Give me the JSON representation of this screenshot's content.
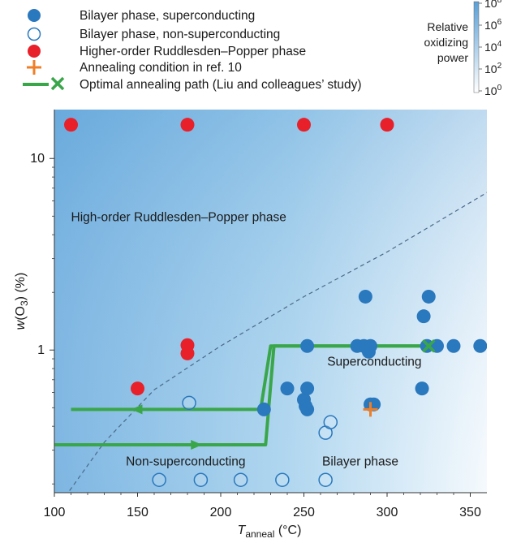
{
  "chart_data": {
    "type": "scatter",
    "xlabel": {
      "main": "T",
      "sub": "anneal",
      "unit": " (°C)"
    },
    "ylabel": {
      "main": "w",
      "mid": "(O",
      "sub": "3",
      "unit": ") (%)"
    },
    "xlim": [
      100,
      360
    ],
    "ylim": [
      0.18,
      18
    ],
    "y_scale": "log",
    "x_ticks": [
      "100",
      "150",
      "200",
      "250",
      "300",
      "350"
    ],
    "y_ticks": [
      "1",
      "10"
    ],
    "legend": [
      {
        "marker": "filled-blue",
        "label": "Bilayer phase, superconducting"
      },
      {
        "marker": "open-blue",
        "label": "Bilayer phase, non-superconducting"
      },
      {
        "marker": "filled-red",
        "label": "Higher-order Ruddlesden–Popper phase"
      },
      {
        "marker": "orange-plus",
        "label": "Annealing condition in ref. 10"
      },
      {
        "marker": "green-path",
        "label": "Optimal annealing path (Liu and colleagues’ study)"
      }
    ],
    "colorbar": {
      "title_lines": [
        "Relative",
        "oxidizing",
        "power"
      ],
      "tick_base": "10",
      "tick_exponents": [
        "0",
        "2",
        "4",
        "6",
        "8"
      ]
    },
    "region_labels": [
      {
        "text": "High-order Ruddlesden–Popper phase",
        "x": 110,
        "y": 4.7
      },
      {
        "text": "Superconducting",
        "x": 264,
        "y": 0.83
      },
      {
        "text": "Non-superconducting",
        "x": 143,
        "y": 0.25
      },
      {
        "text": "Bilayer phase",
        "x": 261,
        "y": 0.25
      }
    ],
    "series": [
      {
        "name": "Bilayer phase, superconducting",
        "marker": "filled-blue",
        "points": [
          [
            226,
            0.49
          ],
          [
            240,
            0.63
          ],
          [
            250,
            0.55
          ],
          [
            251,
            0.51
          ],
          [
            252,
            0.49
          ],
          [
            252,
            0.63
          ],
          [
            252,
            1.05
          ],
          [
            282,
            1.05
          ],
          [
            286,
            1.05
          ],
          [
            287,
            1.9
          ],
          [
            289,
            0.98
          ],
          [
            290,
            1.05
          ],
          [
            290,
            0.52
          ],
          [
            292,
            0.52
          ],
          [
            321,
            0.63
          ],
          [
            322,
            1.5
          ],
          [
            324,
            1.05
          ],
          [
            325,
            1.9
          ],
          [
            330,
            1.05
          ],
          [
            340,
            1.05
          ],
          [
            356,
            1.05
          ]
        ]
      },
      {
        "name": "Bilayer phase, non-superconducting",
        "marker": "open-blue",
        "points": [
          [
            163,
            0.21
          ],
          [
            181,
            0.53
          ],
          [
            188,
            0.21
          ],
          [
            212,
            0.21
          ],
          [
            237,
            0.21
          ],
          [
            263,
            0.21
          ],
          [
            263,
            0.37
          ],
          [
            266,
            0.42
          ]
        ]
      },
      {
        "name": "Higher-order Ruddlesden–Popper phase",
        "marker": "filled-red",
        "points": [
          [
            110,
            15
          ],
          [
            180,
            15
          ],
          [
            250,
            15
          ],
          [
            300,
            15
          ],
          [
            150,
            0.63
          ],
          [
            180,
            1.06
          ],
          [
            180,
            0.96
          ]
        ]
      },
      {
        "name": "Annealing condition in ref. 10",
        "marker": "orange-plus",
        "points": [
          [
            290,
            0.49
          ]
        ]
      }
    ],
    "optimal_path": {
      "upper": [
        [
          325,
          1.05
        ],
        [
          230,
          1.05
        ],
        [
          224,
          0.49
        ],
        [
          110,
          0.49
        ]
      ],
      "lower": [
        [
          100,
          0.32
        ],
        [
          227,
          0.32
        ],
        [
          232,
          1.05
        ],
        [
          325,
          1.05
        ]
      ],
      "end_marker": [
        325,
        1.05
      ]
    },
    "boundary_curve": [
      [
        104,
        0.16
      ],
      [
        130,
        0.33
      ],
      [
        160,
        0.62
      ],
      [
        200,
        1.05
      ],
      [
        250,
        1.9
      ],
      [
        300,
        3.25
      ],
      [
        362,
        6.8
      ]
    ],
    "colors": {
      "superconducting": "#2a78bd",
      "non_superconducting": "#2a78bd",
      "higher_order": "#e8202a",
      "ref10": "#f07e26",
      "path": "#3aa64a",
      "boundary": "#4a6a88"
    }
  }
}
